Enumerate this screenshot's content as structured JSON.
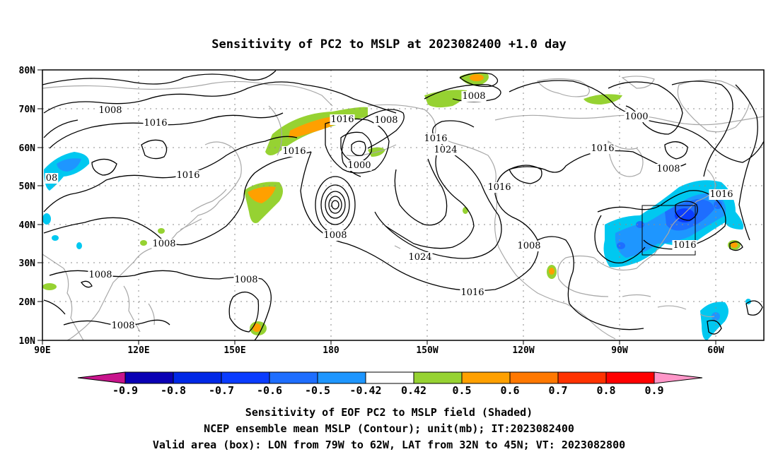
{
  "title": "Sensitivity of PC2 to MSLP at 2023082400 +1.0 day",
  "map": {
    "lat_labels": [
      "80N",
      "70N",
      "60N",
      "50N",
      "40N",
      "30N",
      "20N",
      "10N"
    ],
    "lon_labels": [
      "90E",
      "120E",
      "150E",
      "180",
      "150W",
      "120W",
      "90W",
      "60W"
    ],
    "contour_labels": {
      "c1": "1008",
      "c2": "1016",
      "c3": "1016",
      "c4": "1008",
      "c5": "1016",
      "c6": "1000",
      "c7": "1008",
      "c8": "1016",
      "c9": "1024",
      "c10": "1008",
      "c11": "1000",
      "c12": "1016",
      "c13": "1008",
      "c14": "1016",
      "c15": "1016",
      "c16": "1008",
      "c17": "1024",
      "c18": "1008",
      "c19": "1016",
      "c20": "1008",
      "c21": "1008",
      "c22": "1008",
      "c23": "1016",
      "c24": "08"
    },
    "valid_box": {
      "lon_from": "79W",
      "lon_to": "62W",
      "lat_from": "32N",
      "lat_to": "45N"
    }
  },
  "colorbar": {
    "labels": [
      "-0.9",
      "-0.8",
      "-0.7",
      "-0.6",
      "-0.5",
      "-0.42",
      "0.42",
      "0.5",
      "0.6",
      "0.7",
      "0.8",
      "0.9"
    ],
    "colors": [
      "#0a00b4",
      "#0028e6",
      "#0a3cff",
      "#1e6eff",
      "#1e96ff",
      "#00c8f0",
      "#ffffff",
      "#96d232",
      "#ffa000",
      "#ff7800",
      "#ff3200",
      "#ff0000"
    ],
    "low_end_color": "#c8148c",
    "high_end_color": "#ff96c8"
  },
  "footer": {
    "line1": "Sensitivity of EOF PC2 to MSLP field (Shaded)",
    "line2": "NCEP ensemble mean MSLP (Contour); unit(mb); IT:2023082400",
    "line3": "Valid area (box): LON from 79W to 62W, LAT from 32N to 45N; VT: 2023082800"
  }
}
